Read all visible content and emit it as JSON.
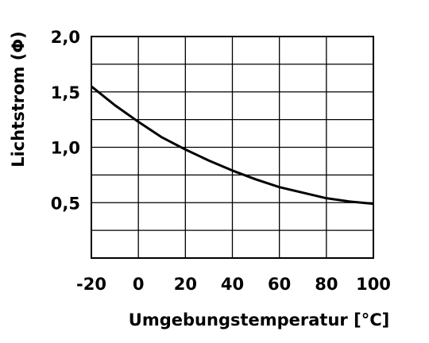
{
  "chart_data": {
    "type": "line",
    "x_label": "Umgebungstemperatur [°C]",
    "y_label": "Lichtstrom (Φ)",
    "x": [
      -20,
      -10,
      0,
      10,
      20,
      30,
      40,
      50,
      60,
      70,
      80,
      90,
      100
    ],
    "series": [
      {
        "color": "#000000",
        "values": [
          1.55,
          1.38,
          1.23,
          1.09,
          0.98,
          0.88,
          0.79,
          0.71,
          0.64,
          0.59,
          0.54,
          0.51,
          0.49
        ]
      }
    ],
    "xlim": [
      -20,
      100
    ],
    "xticks": [
      -20,
      0,
      20,
      40,
      60,
      80,
      100
    ],
    "ylim": [
      0,
      2
    ],
    "yticks": [
      {
        "value": 0.5,
        "label": "0,5"
      },
      {
        "value": 1,
        "label": "1,0"
      },
      {
        "value": 1.5,
        "label": "1,5"
      },
      {
        "value": 2,
        "label": "2,0"
      }
    ],
    "ygrid": [
      0.25,
      0.75,
      1.25,
      1.75
    ],
    "grid": true
  }
}
